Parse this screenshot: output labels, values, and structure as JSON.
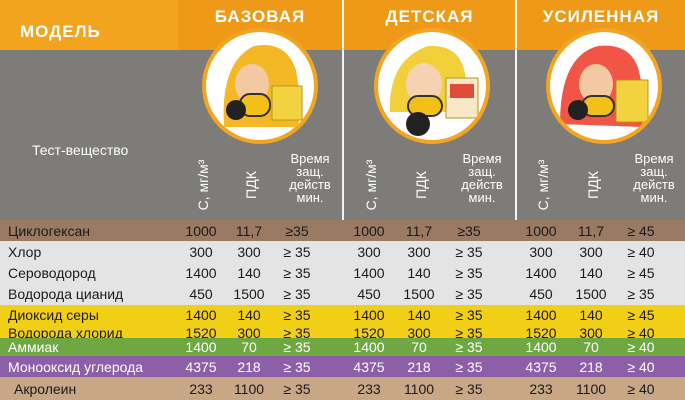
{
  "header": {
    "model_label": "МОДЕЛЬ",
    "columns": [
      {
        "title": "БАЗОВАЯ",
        "hood_color": "#f4b826",
        "body_color": "#f2c019"
      },
      {
        "title": "ДЕТСКАЯ",
        "hood_color": "#f1d03a",
        "body_color": "#f2c019"
      },
      {
        "title": "УСИЛЕННАЯ",
        "hood_color": "#f05545",
        "body_color": "#f2c019"
      }
    ],
    "test_substance_label": "Тест-вещество",
    "sub_headers": {
      "conc": "С, мг/м³",
      "pdk": "ПДК",
      "time_line1": "Время",
      "time_line2": "защ.",
      "time_line3": "действ",
      "time_line4": "мин."
    }
  },
  "rows": [
    {
      "name": "Циклогексан",
      "bg": "#9b7a63",
      "values": [
        "1000",
        "11,7",
        "≥35",
        "1000",
        "11,7",
        "≥35",
        "1000",
        "11,7",
        "≥ 45"
      ]
    },
    {
      "name": "Хлор",
      "bg": "#e4e4e4",
      "values": [
        "300",
        "300",
        "≥ 35",
        "300",
        "300",
        "≥ 35",
        "300",
        "300",
        "≥ 40"
      ]
    },
    {
      "name": "Сероводород",
      "bg": "#e4e4e4",
      "values": [
        "1400",
        "140",
        "≥ 35",
        "1400",
        "140",
        "≥ 35",
        "1400",
        "140",
        "≥ 45"
      ]
    },
    {
      "name": "Водорода цианид",
      "bg": "#e4e4e4",
      "values": [
        "450",
        "1500",
        "≥ 35",
        "450",
        "1500",
        "≥ 35",
        "450",
        "1500",
        "≥ 35"
      ]
    },
    {
      "name": "Диоксид серы",
      "bg": "#f2cf17",
      "values": [
        "1400",
        "140",
        "≥ 35",
        "1400",
        "140",
        "≥ 35",
        "1400",
        "140",
        "≥ 45"
      ]
    },
    {
      "name": "Водорода хлорид",
      "bg": "#f2cf17",
      "values": [
        "1520",
        "300",
        "≥ 35",
        "1520",
        "300",
        "≥ 35",
        "1520",
        "300",
        "≥ 40"
      ]
    },
    {
      "name": "Аммиак",
      "bg": "#6fa843",
      "values": [
        "1400",
        "70",
        "≥ 35",
        "1400",
        "70",
        "≥ 35",
        "1400",
        "70",
        "≥ 40"
      ]
    },
    {
      "name": "Монооксид углерода",
      "bg": "#8d5fa8",
      "values": [
        "4375",
        "218",
        "≥ 35",
        "4375",
        "218",
        "≥ 35",
        "4375",
        "218",
        "≥ 40"
      ]
    },
    {
      "name": "Акролеин",
      "bg": "#c8a787",
      "values": [
        "233",
        "1100",
        "≥ 35",
        "233",
        "1100",
        "≥ 35",
        "233",
        "1100",
        "≥ 40"
      ]
    }
  ]
}
